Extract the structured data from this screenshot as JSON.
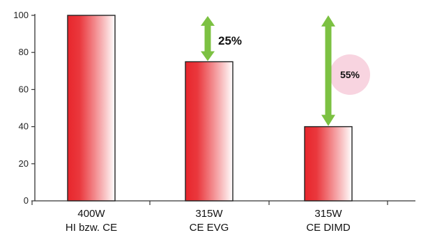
{
  "chart_data": {
    "type": "bar",
    "categories": [
      [
        "400W",
        "HI bzw. CE"
      ],
      [
        "315W",
        "CE EVG"
      ],
      [
        "315W",
        "CE DIMD"
      ]
    ],
    "values": [
      100,
      75,
      40
    ],
    "ylim": [
      0,
      100
    ],
    "yticks": [
      0,
      20,
      40,
      60,
      80,
      100
    ],
    "grid": false,
    "colors": {
      "bar_gradient_left": "#e8262c",
      "bar_gradient_right": "#ffffff",
      "bar_outline": "#222222",
      "arrow": "#7cc142",
      "highlight_circle": "#f8d4e0"
    },
    "annotations": [
      {
        "label": "25%",
        "from_value": 100,
        "to_value": 75,
        "category_index": 1,
        "style": "arrow"
      },
      {
        "label": "55%",
        "from_value": 95,
        "to_value": 40,
        "category_index": 2,
        "style": "arrow-with-circle"
      }
    ]
  }
}
